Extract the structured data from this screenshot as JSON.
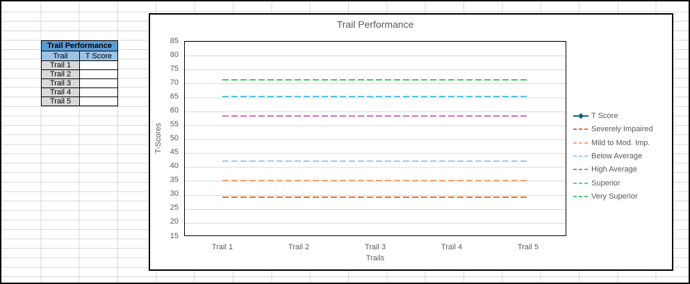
{
  "spreadsheet": {
    "table": {
      "title": "Trail Performance",
      "columns": [
        "Trail",
        "T Score"
      ],
      "rows": [
        {
          "trail": "Trail 1",
          "t_score": ""
        },
        {
          "trail": "Trail 2",
          "t_score": ""
        },
        {
          "trail": "Trail 3",
          "t_score": ""
        },
        {
          "trail": "Trail 4",
          "t_score": ""
        },
        {
          "trail": "Trail 5",
          "t_score": ""
        }
      ],
      "colors": {
        "header_bg": "#5B9BD5",
        "subheader_bg": "#9DC3E6",
        "row_label_bg": "#D9D9D9"
      }
    }
  },
  "chart_data": {
    "type": "line",
    "title": "Trail Performance",
    "xlabel": "Trails",
    "ylabel": "T-Scores",
    "categories": [
      "Trail 1",
      "Trail 2",
      "Trail 3",
      "Trail 4",
      "Trail 5"
    ],
    "ylim": [
      15,
      85
    ],
    "ytick_step": 5,
    "grid": true,
    "legend_position": "right",
    "series": [
      {
        "name": "T Score",
        "values": [],
        "color": "#156082",
        "style": "solid-marker"
      },
      {
        "name": "Severely Impaired",
        "values": [
          29,
          29,
          29,
          29,
          29
        ],
        "color": "#E8702A",
        "style": "dashed"
      },
      {
        "name": "Mild to Mod. Imp.",
        "values": [
          35,
          35,
          35,
          35,
          35
        ],
        "color": "#F2A478",
        "style": "dashed"
      },
      {
        "name": "Below Average",
        "values": [
          42,
          42,
          42,
          42,
          42
        ],
        "color": "#A3C9E8",
        "style": "dashed"
      },
      {
        "name": "High Average",
        "values": [
          58,
          58,
          58,
          58,
          58
        ],
        "color": "#D468D4",
        "style": "dashed"
      },
      {
        "name": "Superior",
        "values": [
          65,
          65,
          65,
          65,
          65
        ],
        "color": "#4FC2EA",
        "style": "dashed"
      },
      {
        "name": "Very Superior",
        "values": [
          71,
          71,
          71,
          71,
          71
        ],
        "color": "#3FCC60",
        "style": "dashed"
      }
    ]
  }
}
